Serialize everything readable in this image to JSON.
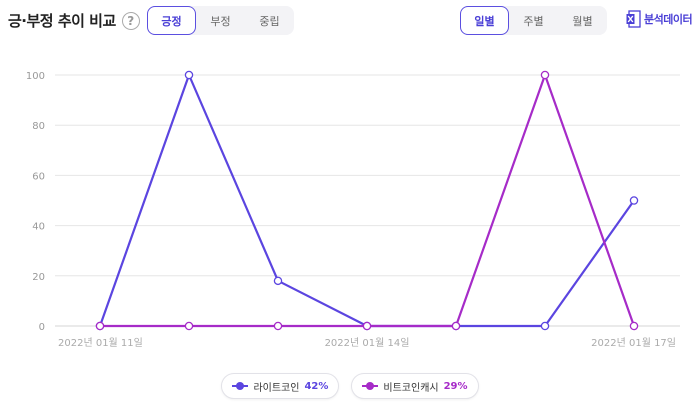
{
  "header": {
    "title": "긍·부정 추이 비교",
    "help_icon": "question-circle-icon"
  },
  "sentiment_tabs": [
    {
      "label": "긍정",
      "active": true
    },
    {
      "label": "부정",
      "active": false
    },
    {
      "label": "중립",
      "active": false
    }
  ],
  "period_tabs": [
    {
      "label": "일별",
      "active": true
    },
    {
      "label": "주별",
      "active": false
    },
    {
      "label": "월별",
      "active": false
    }
  ],
  "analysis_button": {
    "label": "분석데이터",
    "icon": "excel-icon"
  },
  "chart_data": {
    "type": "line",
    "title": "",
    "xlabel": "",
    "ylabel": "",
    "ylim": [
      0,
      100
    ],
    "yticks": [
      0,
      20,
      40,
      60,
      80,
      100
    ],
    "x": [
      "2022-01-11",
      "2022-01-12",
      "2022-01-13",
      "2022-01-14",
      "2022-01-15",
      "2022-01-16",
      "2022-01-17"
    ],
    "xtick_labels": [
      "2022년 01월 11일",
      "2022년 01월 14일",
      "2022년 01월 17일"
    ],
    "xtick_indices": [
      0,
      3,
      6
    ],
    "grid": true,
    "series": [
      {
        "name": "라이트코인",
        "share": "42%",
        "color": "#5b45e0",
        "values": [
          0,
          100,
          18,
          0,
          0,
          0,
          50
        ]
      },
      {
        "name": "비트코인캐시",
        "share": "29%",
        "color": "#a62bc8",
        "values": [
          0,
          0,
          0,
          0,
          0,
          100,
          0
        ]
      }
    ],
    "legend_position": "bottom"
  }
}
